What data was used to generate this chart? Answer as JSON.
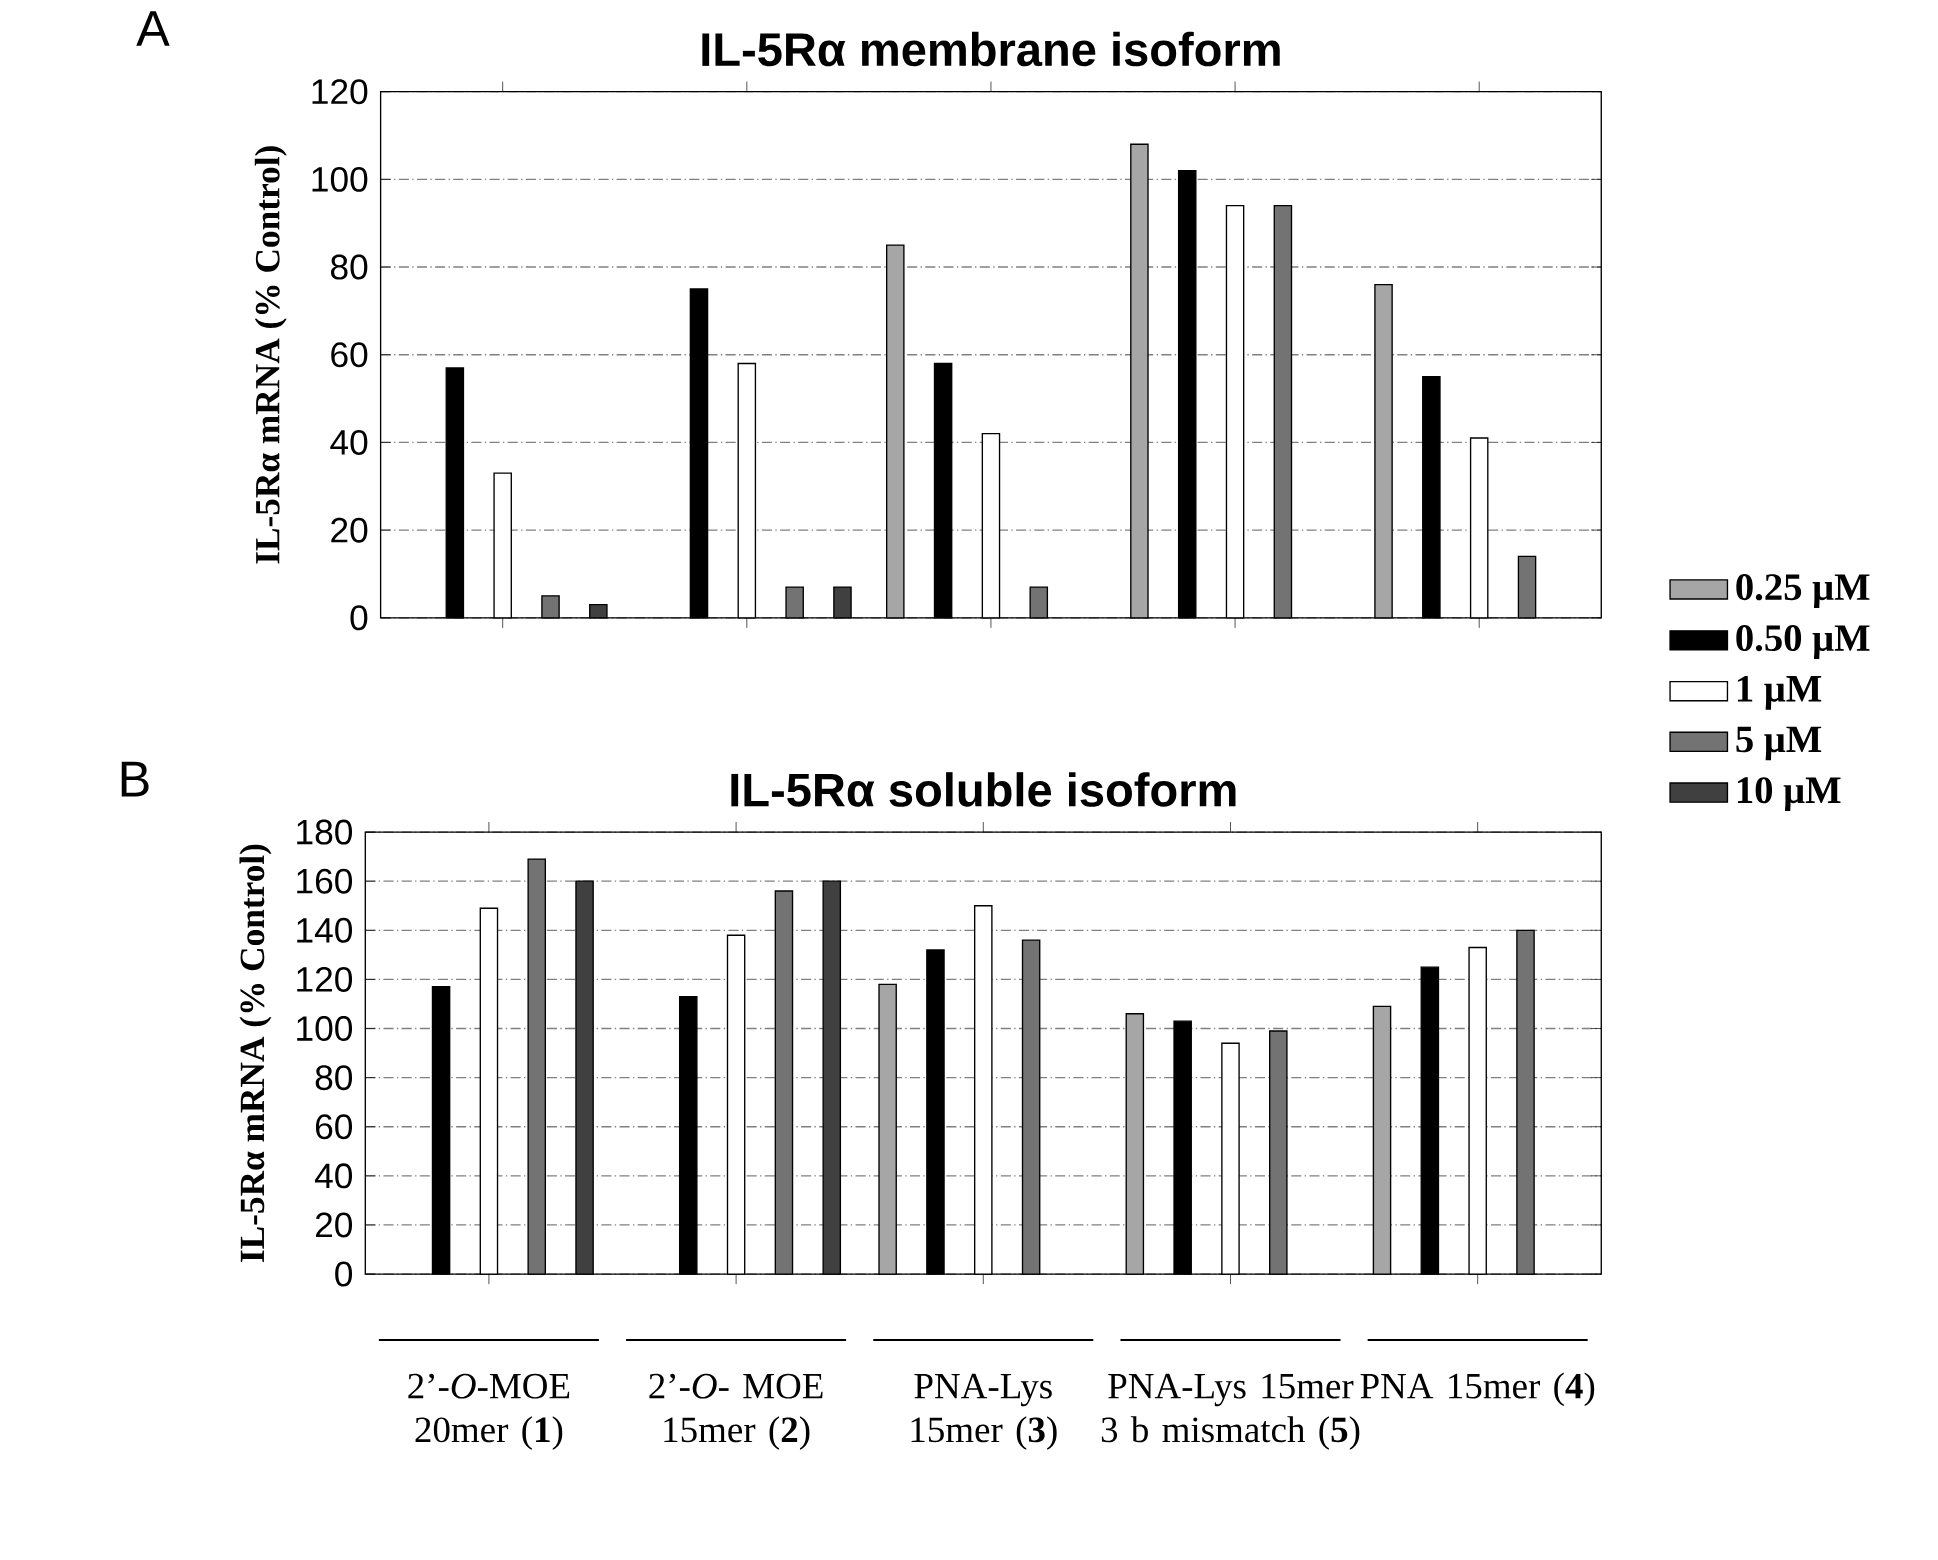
{
  "chart_data": [
    {
      "type": "bar",
      "title": "IL-5Rα membrane isoform",
      "ylabel": "IL-5Rα mRNA (% Control)",
      "annotations": [
        "A"
      ],
      "categories": [
        null,
        null,
        null,
        null,
        null
      ],
      "series": [
        {
          "name": "0.25 μM",
          "color": "#a6a6a6",
          "values": [
            null,
            null,
            85,
            108,
            76
          ]
        },
        {
          "name": "0.50 μM",
          "color": "#000000",
          "values": [
            57,
            75,
            58,
            102,
            55
          ]
        },
        {
          "name": "1 μM",
          "color": "#ffffff",
          "values": [
            33,
            58,
            42,
            94,
            41
          ]
        },
        {
          "name": "5 μM",
          "color": "#737373",
          "values": [
            5,
            7,
            7,
            94,
            14
          ]
        },
        {
          "name": "10 μM",
          "color": "#404040",
          "values": [
            3,
            7,
            null,
            null,
            null
          ]
        }
      ],
      "ylim": [
        0,
        120
      ],
      "yticks": [
        0,
        20,
        40,
        60,
        80,
        100,
        120
      ],
      "grid": "y",
      "legend": "right",
      "tick_labels": "y"
    },
    {
      "type": "bar",
      "title": "IL-5Rα soluble isoform",
      "ylabel": "IL-5Rα mRNA (% Control)",
      "annotations": [
        "B"
      ],
      "categories": [
        "2’-*O*-MOE 20mer (**1**)",
        "2’-*O*- MOE 15mer (**2**)",
        "PNA-Lys 15mer (**3**)",
        "PNA-Lys 15mer 3 b mismatch (**5**)",
        "PNA 15mer (**4**)"
      ],
      "series": [
        {
          "color": "#a6a6a6",
          "values": [
            null,
            null,
            118,
            106,
            109
          ]
        },
        {
          "color": "#000000",
          "values": [
            117,
            113,
            132,
            103,
            125
          ]
        },
        {
          "color": "#ffffff",
          "values": [
            149,
            138,
            150,
            94,
            133
          ]
        },
        {
          "color": "#737373",
          "values": [
            169,
            156,
            136,
            99,
            140
          ]
        },
        {
          "color": "#404040",
          "values": [
            160,
            160,
            null,
            null,
            null
          ]
        }
      ],
      "ylim": [
        0,
        180
      ],
      "yticks": [
        0,
        20,
        40,
        60,
        80,
        100,
        120,
        140,
        160,
        180
      ],
      "grid": "y"
    }
  ]
}
